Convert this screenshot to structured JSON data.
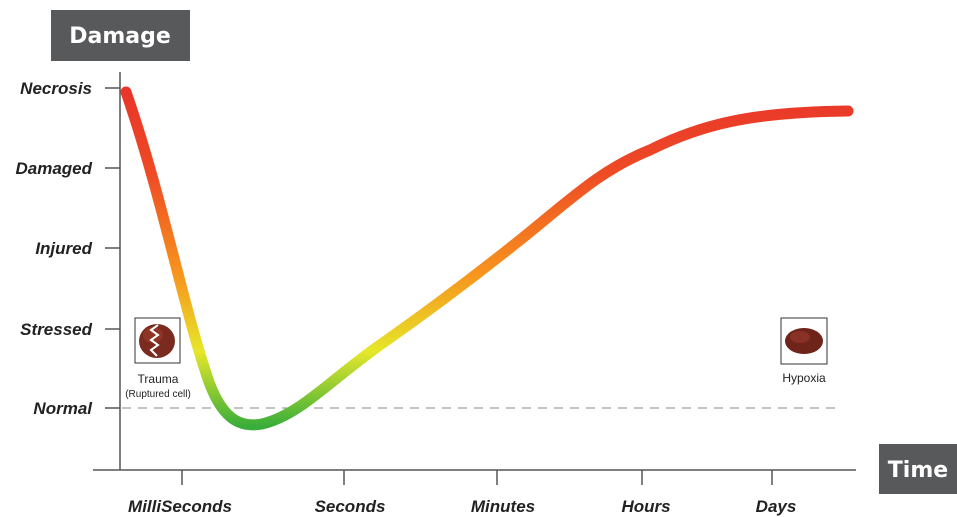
{
  "labels": {
    "y_title": "Damage",
    "x_title": "Time"
  },
  "chart_data": {
    "type": "line",
    "xlabel": "Time",
    "ylabel": "Damage",
    "y_levels": [
      "Normal",
      "Stressed",
      "Injured",
      "Damaged",
      "Necrosis"
    ],
    "x_ticks": [
      "MilliSeconds",
      "Seconds",
      "Minutes",
      "Hours",
      "Days"
    ],
    "baseline_label": "Normal",
    "gradient_colors": [
      "#e8352a",
      "#f7941d",
      "#e6e72a",
      "#3aae3a"
    ]
  },
  "annotations": {
    "left": {
      "label": "Trauma",
      "sublabel": "(Ruptured cell)",
      "icon": "ruptured-cell-icon"
    },
    "right": {
      "label": "Hypoxia",
      "icon": "hypoxia-cell-icon"
    }
  }
}
